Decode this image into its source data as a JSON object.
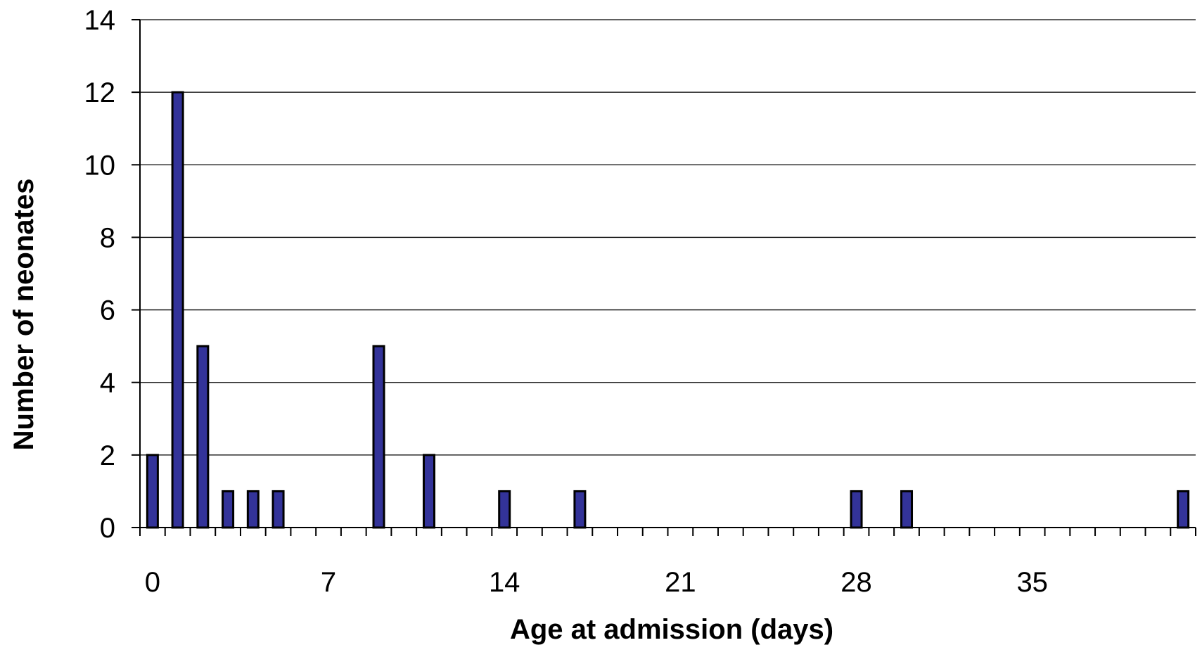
{
  "chart_data": {
    "type": "bar",
    "title": "",
    "xlabel": "Age at admission (days)",
    "ylabel": "Number of neonates",
    "xlim": [
      0,
      41
    ],
    "ylim": [
      0,
      14
    ],
    "x_tick_labels": [
      "0",
      "7",
      "14",
      "21",
      "28",
      "35"
    ],
    "x_tick_values": [
      0,
      7,
      14,
      21,
      28,
      35
    ],
    "y_tick_labels": [
      "0",
      "2",
      "4",
      "6",
      "8",
      "10",
      "12",
      "14"
    ],
    "y_tick_values": [
      0,
      2,
      4,
      6,
      8,
      10,
      12,
      14
    ],
    "grid": "horizontal",
    "legend": "none",
    "bar_color": "#333399",
    "series": [
      {
        "x": [
          0,
          1,
          2,
          3,
          4,
          5,
          9,
          11,
          14,
          17,
          28,
          30,
          41
        ],
        "values": [
          2,
          12,
          5,
          1,
          1,
          1,
          5,
          2,
          1,
          1,
          1,
          1,
          1
        ]
      }
    ]
  }
}
